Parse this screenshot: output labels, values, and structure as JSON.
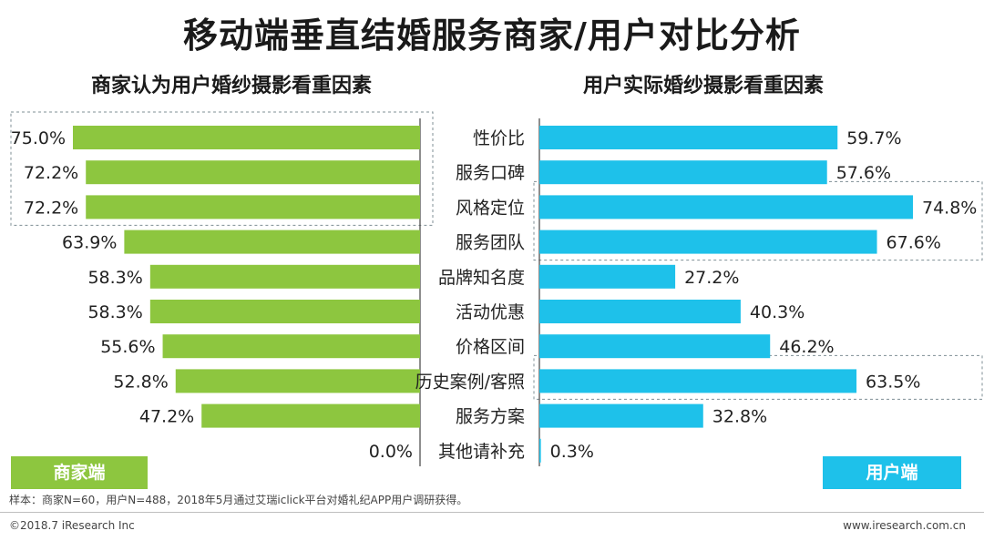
{
  "title": "移动端垂直结婚服务商家/用户对比分析",
  "footer": {
    "note": "样本：商家N=60，用户N=488，2018年5月通过艾瑞iclick平台对婚礼纪APP用户调研获得。",
    "copyright": "©2018.7 iResearch Inc",
    "site": "www.iresearch.com.cn"
  },
  "chart_data": [
    {
      "type": "bar",
      "orientation": "horizontal",
      "direction": "right-to-left",
      "title": "商家认为用户婚纱摄影看重因素",
      "legend": "商家端",
      "color": "#8dc63f",
      "categories": [
        "性价比",
        "服务口碑",
        "风格定位",
        "服务团队",
        "品牌知名度",
        "活动优惠",
        "价格区间",
        "历史案例/客照",
        "服务方案",
        "其他请补充"
      ],
      "values": [
        75.0,
        72.2,
        72.2,
        63.9,
        58.3,
        58.3,
        55.6,
        52.8,
        47.2,
        0.0
      ],
      "labels": [
        "75.0%",
        "72.2%",
        "72.2%",
        "63.9%",
        "58.3%",
        "58.3%",
        "55.6%",
        "52.8%",
        "47.2%",
        "0.0%"
      ],
      "highlight": [
        0,
        1,
        2
      ],
      "xlim": [
        0,
        80
      ]
    },
    {
      "type": "bar",
      "orientation": "horizontal",
      "direction": "left-to-right",
      "title": "用户实际婚纱摄影看重因素",
      "legend": "用户端",
      "color": "#1ec1ea",
      "categories": [
        "性价比",
        "服务口碑",
        "风格定位",
        "服务团队",
        "品牌知名度",
        "活动优惠",
        "价格区间",
        "历史案例/客照",
        "服务方案",
        "其他请补充"
      ],
      "values": [
        59.7,
        57.6,
        74.8,
        67.6,
        27.2,
        40.3,
        46.2,
        63.5,
        32.8,
        0.3
      ],
      "labels": [
        "59.7%",
        "57.6%",
        "74.8%",
        "67.6%",
        "27.2%",
        "40.3%",
        "46.2%",
        "63.5%",
        "32.8%",
        "0.3%"
      ],
      "highlight": [
        2,
        3,
        7
      ],
      "xlim": [
        0,
        80
      ]
    }
  ]
}
